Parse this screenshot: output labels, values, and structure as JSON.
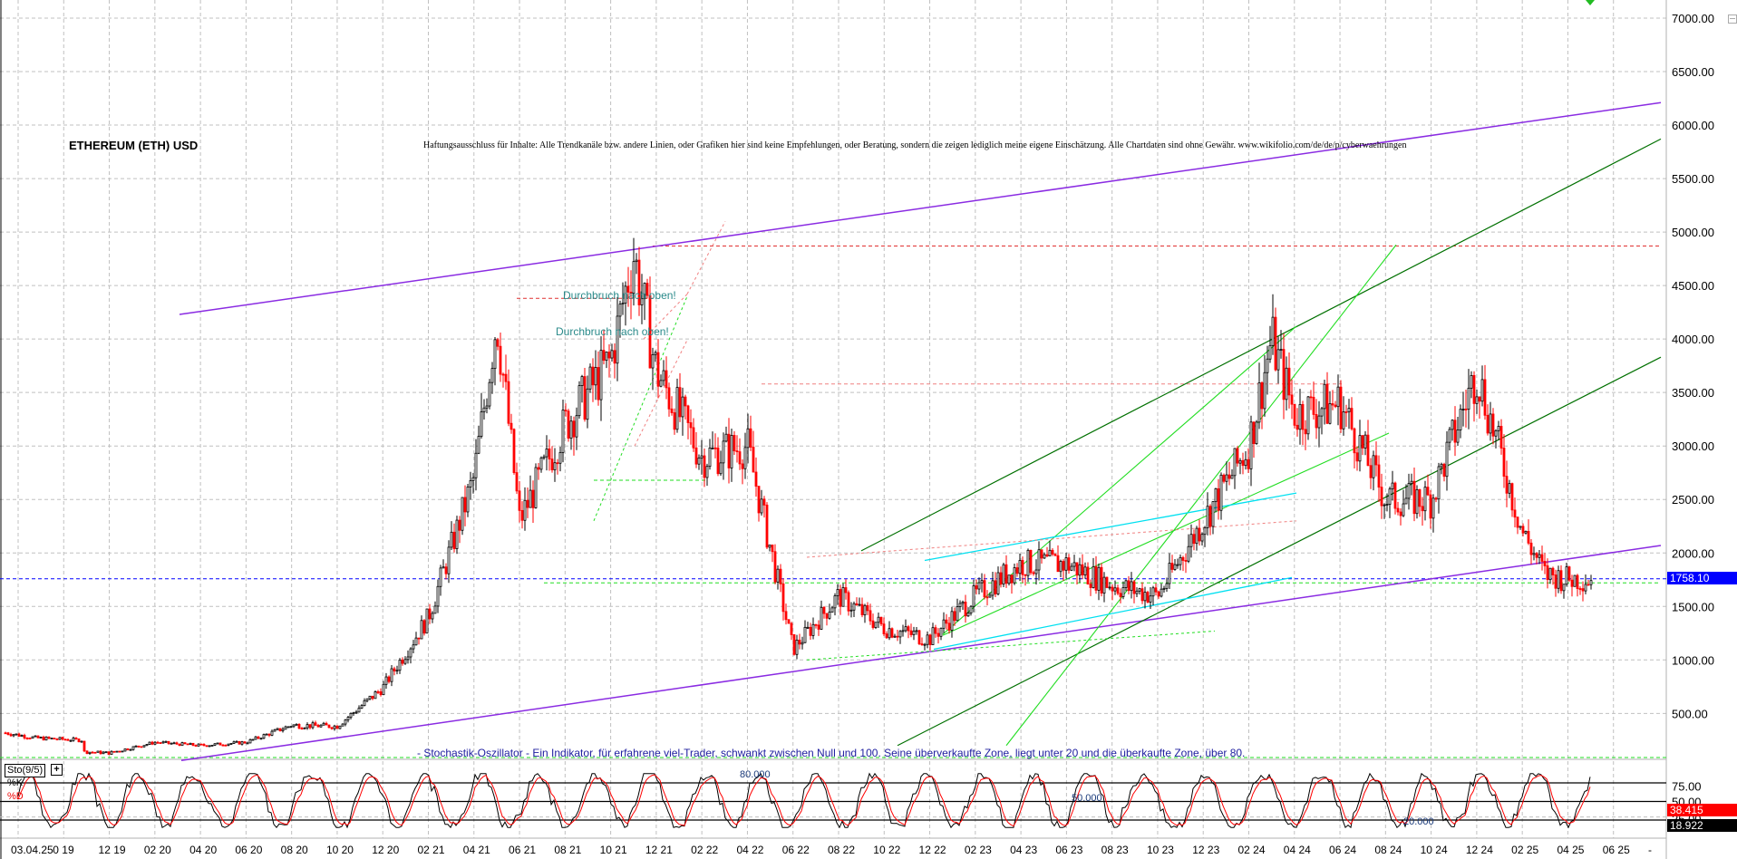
{
  "chart_data": {
    "type": "candlestick",
    "title": "ETHEREUM (ETH) USD",
    "disclaimer": "Haftungsausschluss für Inhalte: Alle Trendkanäle bzw. andere Linien, oder Grafiken hier sind keine Empfehlungen, oder Beratung, sondern die zeigen lediglich meine eigene Einschätzung. Alle Chartdaten sind ohne Gewähr.  www.wikifolio.com/de/de/p/cyberwaehrungen",
    "ylabel": "",
    "xlabel": "",
    "ylim": [
      0,
      7200
    ],
    "y_ticks": [
      "7000.00",
      "6500.00",
      "6000.00",
      "5500.00",
      "5000.00",
      "4500.00",
      "4000.00",
      "3500.00",
      "3000.00",
      "2500.00",
      "2000.00",
      "1500.00",
      "1000.00",
      "500.00"
    ],
    "y_tick_values": [
      7000,
      6500,
      6000,
      5500,
      5000,
      4500,
      4000,
      3500,
      3000,
      2500,
      2000,
      1500,
      1000,
      500
    ],
    "x_ticks": [
      "03.04.25",
      "0 19",
      "12 19",
      "02 20",
      "04 20",
      "06 20",
      "08 20",
      "10 20",
      "12 20",
      "02 21",
      "04 21",
      "06 21",
      "08 21",
      "10 21",
      "12 21",
      "02 22",
      "04 22",
      "06 22",
      "08 22",
      "10 22",
      "12 22",
      "02 23",
      "04 23",
      "06 23",
      "08 23",
      "10 23",
      "12 23",
      "02 24",
      "04 24",
      "06 24",
      "08 24",
      "10 24",
      "12 24",
      "02 25",
      "04 25",
      "06 25",
      "-"
    ],
    "grid": true,
    "last_price": "1758.10",
    "approx_monthly_close": {
      "x": [
        "10 19",
        "12 19",
        "02 20",
        "04 20",
        "06 20",
        "08 20",
        "10 20",
        "12 20",
        "02 21",
        "04 21",
        "05 21",
        "06 21",
        "08 21",
        "10 21",
        "11 21",
        "12 21",
        "02 22",
        "04 22",
        "06 22",
        "08 22",
        "10 22",
        "12 22",
        "02 23",
        "04 23",
        "06 23",
        "08 23",
        "10 23",
        "12 23",
        "02 24",
        "03 24",
        "04 24",
        "06 24",
        "08 24",
        "10 24",
        "12 24",
        "02 25",
        "03 25",
        "04 25"
      ],
      "values": [
        180,
        130,
        230,
        200,
        230,
        390,
        380,
        740,
        1400,
        2700,
        4200,
        2300,
        3200,
        3800,
        4800,
        3700,
        2900,
        3000,
        1100,
        1600,
        1300,
        1200,
        1600,
        1900,
        1900,
        1700,
        1600,
        2300,
        3000,
        4000,
        3300,
        3400,
        2500,
        2500,
        3700,
        2200,
        1800,
        1758
      ]
    },
    "annotations": [
      {
        "text": "Durchbruch nach oben!",
        "price": 4380
      },
      {
        "text": "Durchbruch nach oben!",
        "price": 4030
      }
    ],
    "horizontal_levels": [
      {
        "price": 4870,
        "color": "#e03030",
        "style": "dashed"
      },
      {
        "price": 3580,
        "color": "#f08080",
        "style": "dashed"
      },
      {
        "price": 1758.1,
        "color": "#0000ff",
        "style": "dashed"
      },
      {
        "price": 1720,
        "color": "#00cc00",
        "style": "dashed"
      },
      {
        "price": 2680,
        "color": "#00cc00",
        "style": "dashed"
      }
    ],
    "trendlines": [
      {
        "name": "purple-upper-channel",
        "color": "#8a2be2",
        "from": [
          "12 19",
          4230
        ],
        "to": [
          "07 25",
          6210
        ]
      },
      {
        "name": "purple-lower-channel",
        "color": "#8a2be2",
        "from": [
          "02 20",
          100
        ],
        "to": [
          "07 25",
          2070
        ]
      },
      {
        "name": "dark-green-upper",
        "color": "#007000",
        "from": [
          "08 22",
          2020
        ],
        "to": [
          "07 25",
          5870
        ]
      },
      {
        "name": "dark-green-lower",
        "color": "#007000",
        "from": [
          "09 22",
          200
        ],
        "to": [
          "07 25",
          3830
        ]
      }
    ],
    "stochastic": {
      "label": "Sto(9/5)",
      "k_label": "%K",
      "d_label": "%D",
      "levels": [
        "80.000",
        "50.000",
        "20.000"
      ],
      "y_ticks": [
        "75.00",
        "50.00",
        "25.00"
      ],
      "k_value": "18.922",
      "d_value": "38.415",
      "note": "- Stochastik-Oszillator - Ein Indikator, für erfahrene viel-Trader, schwankt zwischen Null und 100. Seine überverkaufte Zone, liegt unter 20 und die überkaufte Zone, über 80."
    }
  },
  "colors": {
    "bull": "#000000",
    "bear": "#ff0000",
    "grid": "#c0c0c0",
    "purple": "#8a2be2",
    "dark_green": "#007000",
    "light_green": "#22dd22",
    "cyan": "#00e0f0",
    "last_price_bg": "#0000ff",
    "d_value_bg": "#ff0000",
    "k_value_bg": "#000000"
  }
}
